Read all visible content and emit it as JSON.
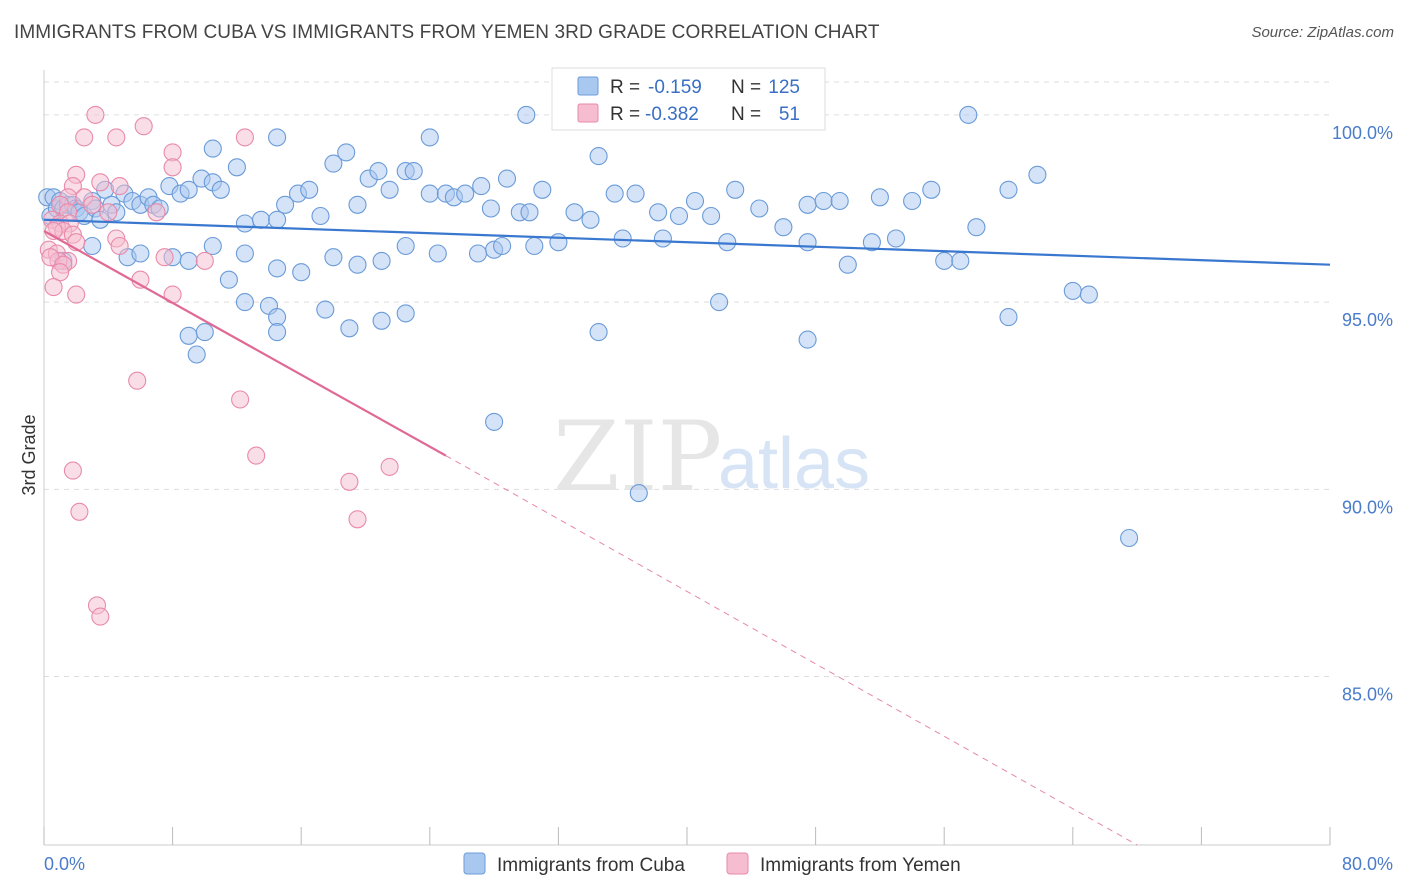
{
  "header": {
    "title": "IMMIGRANTS FROM CUBA VS IMMIGRANTS FROM YEMEN 3RD GRADE CORRELATION CHART",
    "source": "Source: ZipAtlas.com"
  },
  "watermark": {
    "zip": "ZIP",
    "atlas": "atlas"
  },
  "legend_box": {
    "rows": [
      {
        "r_label": "R =",
        "r_value": "-0.159",
        "n_label": "N =",
        "n_value": "125"
      },
      {
        "r_label": "R =",
        "r_value": "-0.382",
        "n_label": "N =",
        "n_value": "51"
      }
    ]
  },
  "colors": {
    "cuba_fill": "#a9c8ef",
    "cuba_stroke": "#6a9bd8",
    "cuba_line": "#3a78d0",
    "yemen_fill": "#f6bdd0",
    "yemen_stroke": "#e88aab",
    "yemen_line": "#e06a95",
    "tick_text": "#4a7cc9",
    "grid": "#dddddd"
  },
  "chart_data": {
    "type": "scatter",
    "title": "IMMIGRANTS FROM CUBA VS IMMIGRANTS FROM YEMEN 3RD GRADE CORRELATION CHART",
    "xlabel": "",
    "ylabel": "3rd Grade",
    "xlim": [
      0,
      80
    ],
    "ylim": [
      80.5,
      101.2
    ],
    "x_tick_labels": [
      "0.0%",
      "80.0%"
    ],
    "y_ticks": [
      85,
      90,
      95,
      100
    ],
    "y_tick_labels": [
      "85.0%",
      "90.0%",
      "95.0%",
      "100.0%"
    ],
    "grid": true,
    "legend_position": "bottom-center",
    "series": [
      {
        "name": "Immigrants from Cuba",
        "r": -0.159,
        "n": 125,
        "trend": {
          "x": [
            0,
            80
          ],
          "y": [
            97.2,
            96.0
          ],
          "extrapolated": false
        },
        "points": [
          [
            0.2,
            97.8
          ],
          [
            0.4,
            97.3
          ],
          [
            0.6,
            97.8
          ],
          [
            0.8,
            97.5
          ],
          [
            1.0,
            97.7
          ],
          [
            1.2,
            97.5
          ],
          [
            1.5,
            97.6
          ],
          [
            1.8,
            97.6
          ],
          [
            2.0,
            97.5
          ],
          [
            2.2,
            97.4
          ],
          [
            2.5,
            97.3
          ],
          [
            3.0,
            97.7
          ],
          [
            3.2,
            97.5
          ],
          [
            3.5,
            97.2
          ],
          [
            3.8,
            98.0
          ],
          [
            4.2,
            97.6
          ],
          [
            4.5,
            97.4
          ],
          [
            5.0,
            97.9
          ],
          [
            5.5,
            97.7
          ],
          [
            6.0,
            97.6
          ],
          [
            6.5,
            97.8
          ],
          [
            6.8,
            97.6
          ],
          [
            7.2,
            97.5
          ],
          [
            7.8,
            98.1
          ],
          [
            8.5,
            97.9
          ],
          [
            9.0,
            98.0
          ],
          [
            9.8,
            98.3
          ],
          [
            10.5,
            98.2
          ],
          [
            11.0,
            98.0
          ],
          [
            12.0,
            98.6
          ],
          [
            12.5,
            97.1
          ],
          [
            13.5,
            97.2
          ],
          [
            14.5,
            97.2
          ],
          [
            15.0,
            97.6
          ],
          [
            15.8,
            97.9
          ],
          [
            16.5,
            98.0
          ],
          [
            17.2,
            97.3
          ],
          [
            18.0,
            98.7
          ],
          [
            18.8,
            99.0
          ],
          [
            19.5,
            97.6
          ],
          [
            20.2,
            98.3
          ],
          [
            20.8,
            98.5
          ],
          [
            21.5,
            98.0
          ],
          [
            22.5,
            98.5
          ],
          [
            23.0,
            98.5
          ],
          [
            24.0,
            97.9
          ],
          [
            25.0,
            97.9
          ],
          [
            25.5,
            97.8
          ],
          [
            26.2,
            97.9
          ],
          [
            27.2,
            98.1
          ],
          [
            27.8,
            97.5
          ],
          [
            28.0,
            96.4
          ],
          [
            28.8,
            98.3
          ],
          [
            29.6,
            97.4
          ],
          [
            30.2,
            97.4
          ],
          [
            31.0,
            98.0
          ],
          [
            33.0,
            97.4
          ],
          [
            34.0,
            97.2
          ],
          [
            35.5,
            97.9
          ],
          [
            36.8,
            97.9
          ],
          [
            38.2,
            97.4
          ],
          [
            39.5,
            97.3
          ],
          [
            40.5,
            97.7
          ],
          [
            41.5,
            97.3
          ],
          [
            43.0,
            98.0
          ],
          [
            44.5,
            97.5
          ],
          [
            46.0,
            97.0
          ],
          [
            47.5,
            97.6
          ],
          [
            48.5,
            97.7
          ],
          [
            49.5,
            97.7
          ],
          [
            52.0,
            97.8
          ],
          [
            54.0,
            97.7
          ],
          [
            55.2,
            98.0
          ],
          [
            58.0,
            97.0
          ],
          [
            60.0,
            98.0
          ],
          [
            61.8,
            98.4
          ],
          [
            1.2,
            96.1
          ],
          [
            3.0,
            96.5
          ],
          [
            5.2,
            96.2
          ],
          [
            6.0,
            96.3
          ],
          [
            8.0,
            96.2
          ],
          [
            9.0,
            96.1
          ],
          [
            10.5,
            96.5
          ],
          [
            12.5,
            96.3
          ],
          [
            14.5,
            95.9
          ],
          [
            16.0,
            95.8
          ],
          [
            18.0,
            96.2
          ],
          [
            19.5,
            96.0
          ],
          [
            21.0,
            96.1
          ],
          [
            22.5,
            96.5
          ],
          [
            24.5,
            96.3
          ],
          [
            27.0,
            96.3
          ],
          [
            28.5,
            96.5
          ],
          [
            30.5,
            96.5
          ],
          [
            32.0,
            96.6
          ],
          [
            36.0,
            96.7
          ],
          [
            38.5,
            96.7
          ],
          [
            42.5,
            96.6
          ],
          [
            47.5,
            96.6
          ],
          [
            50.0,
            96.0
          ],
          [
            51.5,
            96.6
          ],
          [
            53.0,
            96.7
          ],
          [
            56.0,
            96.1
          ],
          [
            57.0,
            96.1
          ],
          [
            11.5,
            95.6
          ],
          [
            12.5,
            95.0
          ],
          [
            14.0,
            94.9
          ],
          [
            14.5,
            94.6
          ],
          [
            17.5,
            94.8
          ],
          [
            19.0,
            94.3
          ],
          [
            21.0,
            94.5
          ],
          [
            22.5,
            94.7
          ],
          [
            9.0,
            94.1
          ],
          [
            10.0,
            94.2
          ],
          [
            9.5,
            93.6
          ],
          [
            14.5,
            94.2
          ],
          [
            34.5,
            94.2
          ],
          [
            42.0,
            95.0
          ],
          [
            47.5,
            94.0
          ],
          [
            60.0,
            94.6
          ],
          [
            64.0,
            95.3
          ],
          [
            65.0,
            95.2
          ],
          [
            28.0,
            91.8
          ],
          [
            37.0,
            89.9
          ],
          [
            67.5,
            88.7
          ],
          [
            30.0,
            100.0
          ],
          [
            57.5,
            100.0
          ],
          [
            24.0,
            99.4
          ],
          [
            14.5,
            99.4
          ],
          [
            34.5,
            98.9
          ],
          [
            10.5,
            99.1
          ]
        ]
      },
      {
        "name": "Immigrants from Yemen",
        "r": -0.382,
        "n": 51,
        "trend": {
          "x": [
            0,
            25,
            80
          ],
          "y": [
            96.9,
            90.9,
            77.6
          ],
          "solid_until": 25
        },
        "points": [
          [
            3.2,
            100.0
          ],
          [
            6.2,
            99.7
          ],
          [
            2.5,
            99.4
          ],
          [
            4.5,
            99.4
          ],
          [
            8.0,
            99.0
          ],
          [
            12.5,
            99.4
          ],
          [
            8.0,
            98.6
          ],
          [
            2.0,
            98.4
          ],
          [
            1.8,
            98.1
          ],
          [
            3.5,
            98.2
          ],
          [
            4.7,
            98.1
          ],
          [
            1.5,
            97.8
          ],
          [
            2.5,
            97.8
          ],
          [
            3.0,
            97.6
          ],
          [
            1.0,
            97.6
          ],
          [
            1.5,
            97.4
          ],
          [
            0.5,
            97.2
          ],
          [
            1.0,
            97.1
          ],
          [
            1.6,
            97.1
          ],
          [
            0.8,
            97.0
          ],
          [
            1.2,
            96.9
          ],
          [
            1.8,
            96.8
          ],
          [
            0.6,
            96.9
          ],
          [
            2.0,
            96.6
          ],
          [
            0.3,
            96.4
          ],
          [
            0.8,
            96.3
          ],
          [
            1.5,
            96.1
          ],
          [
            0.9,
            96.1
          ],
          [
            0.4,
            96.2
          ],
          [
            1.2,
            96.0
          ],
          [
            4.5,
            96.7
          ],
          [
            4.7,
            96.5
          ],
          [
            7.5,
            96.2
          ],
          [
            10.0,
            96.1
          ],
          [
            1.0,
            95.8
          ],
          [
            6.0,
            95.6
          ],
          [
            2.0,
            95.2
          ],
          [
            0.6,
            95.4
          ],
          [
            8.0,
            95.2
          ],
          [
            5.8,
            92.9
          ],
          [
            12.2,
            92.4
          ],
          [
            13.2,
            90.9
          ],
          [
            19.0,
            90.2
          ],
          [
            21.5,
            90.6
          ],
          [
            1.8,
            90.5
          ],
          [
            19.5,
            89.2
          ],
          [
            2.2,
            89.4
          ],
          [
            3.3,
            86.9
          ],
          [
            3.5,
            86.6
          ],
          [
            7.0,
            97.4
          ],
          [
            4.0,
            97.4
          ]
        ]
      }
    ]
  },
  "bottom_legend": {
    "items": [
      {
        "label": "Immigrants from Cuba"
      },
      {
        "label": "Immigrants from Yemen"
      }
    ]
  }
}
